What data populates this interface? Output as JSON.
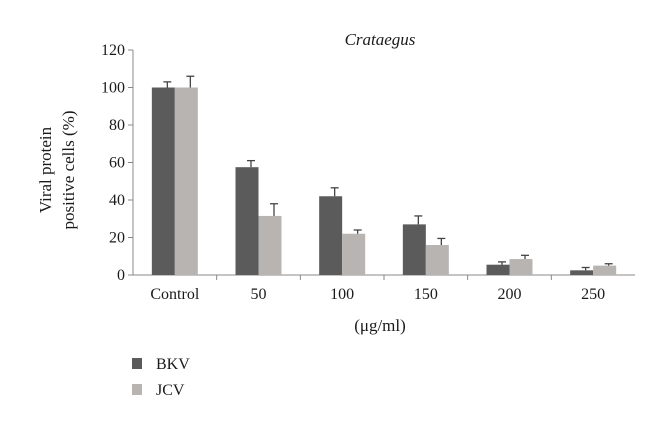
{
  "chart_data": {
    "type": "bar",
    "title": "Crataegus",
    "xlabel": "(μg/ml)",
    "ylabel_lines": [
      "Viral protein",
      "positive cells (%)"
    ],
    "categories": [
      "Control",
      "50",
      "100",
      "150",
      "200",
      "250"
    ],
    "ylim": [
      0,
      120
    ],
    "yticks": [
      0,
      20,
      40,
      60,
      80,
      100,
      120
    ],
    "grid": false,
    "legend_position": "bottom-left",
    "series": [
      {
        "name": "BKV",
        "color": "#5b5b5b",
        "values": [
          100,
          57.5,
          42,
          27,
          5.5,
          2.5
        ],
        "errors": [
          3,
          3.5,
          4.5,
          4.5,
          1.5,
          1.5
        ]
      },
      {
        "name": "JCV",
        "color": "#b8b4b1",
        "values": [
          100,
          31.5,
          22,
          16,
          8.5,
          5
        ],
        "errors": [
          6,
          6.5,
          2,
          3.5,
          2,
          1
        ]
      }
    ]
  }
}
